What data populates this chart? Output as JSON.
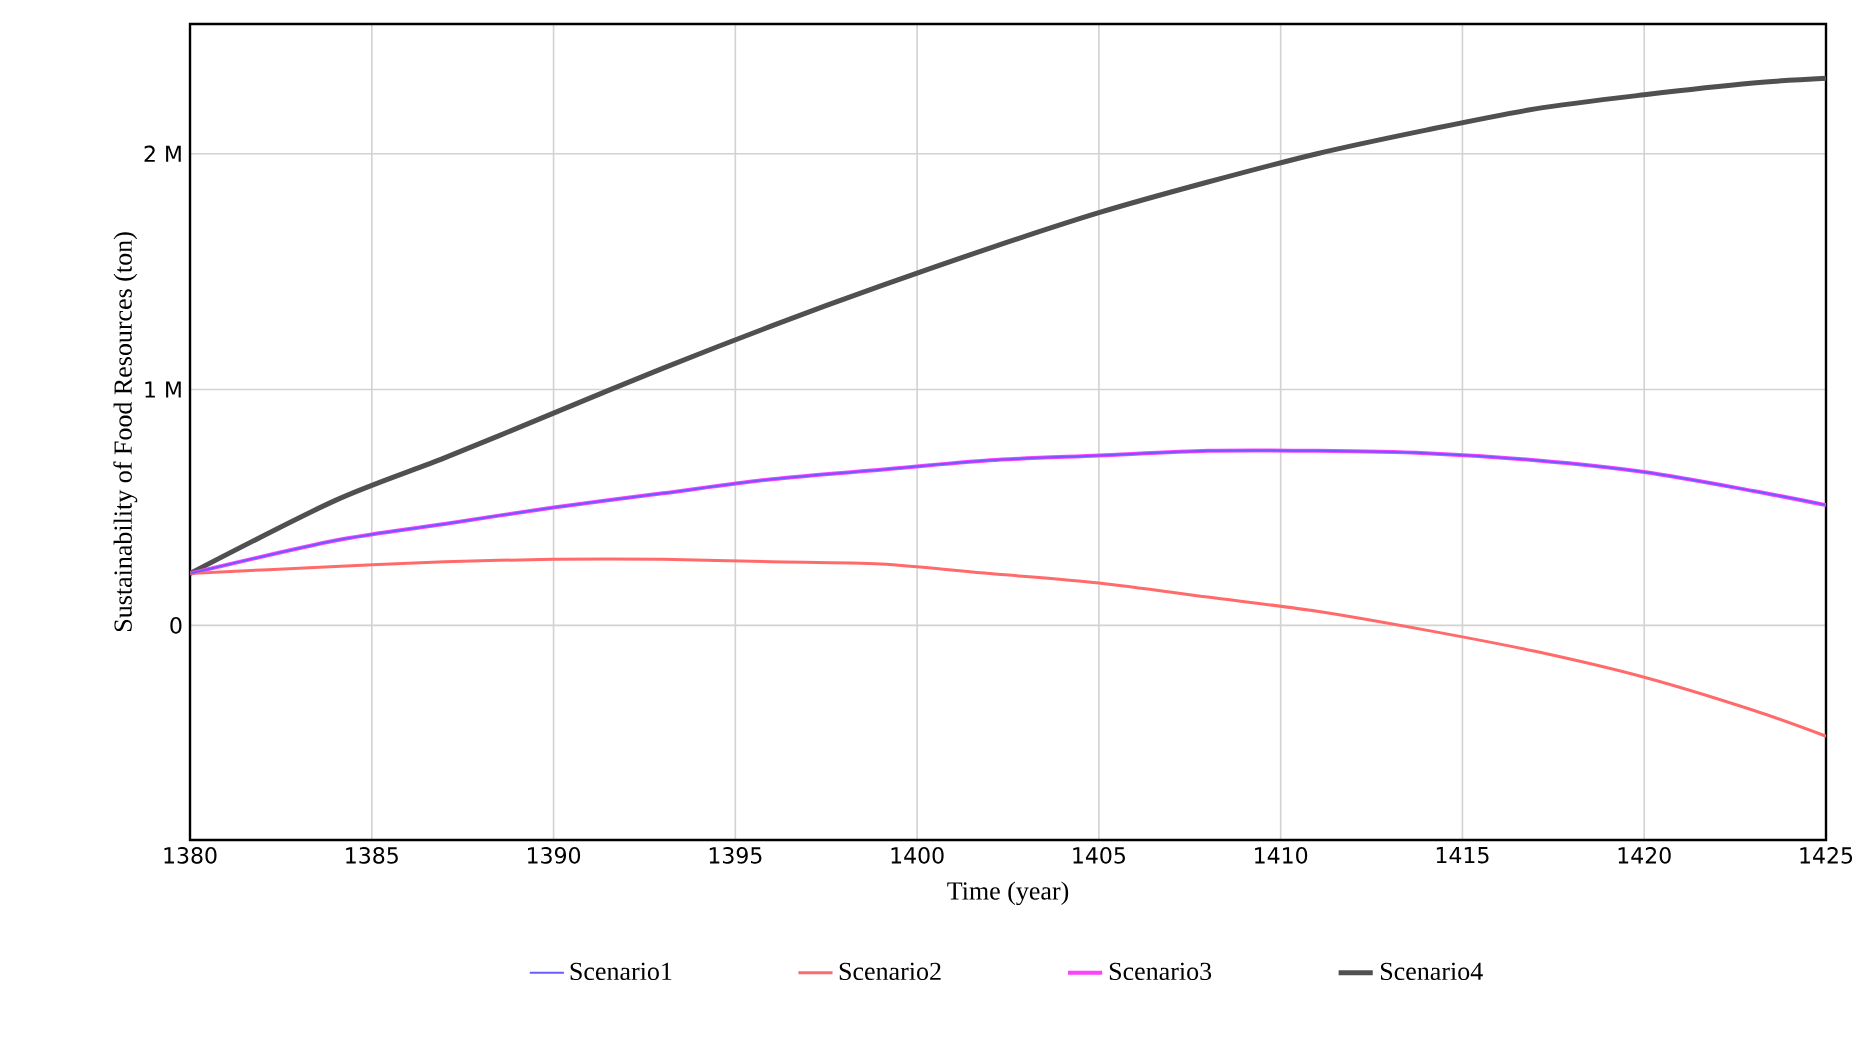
{
  "chart_data": {
    "type": "line",
    "xlabel": "Time (year)",
    "ylabel": "Sustainability of Food Resources (ton)",
    "x": [
      1380,
      1384,
      1387,
      1390,
      1393,
      1396,
      1399,
      1402,
      1405,
      1408,
      1411,
      1414,
      1417,
      1420,
      1423,
      1425
    ],
    "series": [
      {
        "name": "Scenario1",
        "color": "#6a5cff",
        "values": [
          220000,
          360000,
          430000,
          500000,
          560000,
          620000,
          660000,
          700000,
          720000,
          740000,
          740000,
          730000,
          700000,
          650000,
          570000,
          510000
        ]
      },
      {
        "name": "Scenario2",
        "color": "#ff6b6b",
        "values": [
          220000,
          250000,
          270000,
          280000,
          280000,
          270000,
          260000,
          220000,
          180000,
          120000,
          60000,
          -20000,
          -110000,
          -220000,
          -360000,
          -470000
        ]
      },
      {
        "name": "Scenario3",
        "color": "#ff40ff",
        "values": [
          220000,
          360000,
          430000,
          500000,
          560000,
          620000,
          660000,
          700000,
          720000,
          740000,
          740000,
          730000,
          700000,
          650000,
          570000,
          510000
        ]
      },
      {
        "name": "Scenario4",
        "color": "#505050",
        "values": [
          220000,
          530000,
          710000,
          900000,
          1090000,
          1270000,
          1440000,
          1600000,
          1750000,
          1880000,
          2000000,
          2100000,
          2190000,
          2250000,
          2300000,
          2320000
        ]
      }
    ],
    "xlim": [
      1380,
      1425
    ],
    "xticks": [
      1380,
      1385,
      1390,
      1395,
      1400,
      1405,
      1410,
      1415,
      1420,
      1425
    ],
    "ylim": [
      -910000,
      2550000
    ],
    "yticks": [
      {
        "value": 0,
        "label": "0"
      },
      {
        "value": 1000000,
        "label": "1 M"
      },
      {
        "value": 2000000,
        "label": "2 M"
      }
    ],
    "grid": true,
    "legend": "bottom"
  }
}
